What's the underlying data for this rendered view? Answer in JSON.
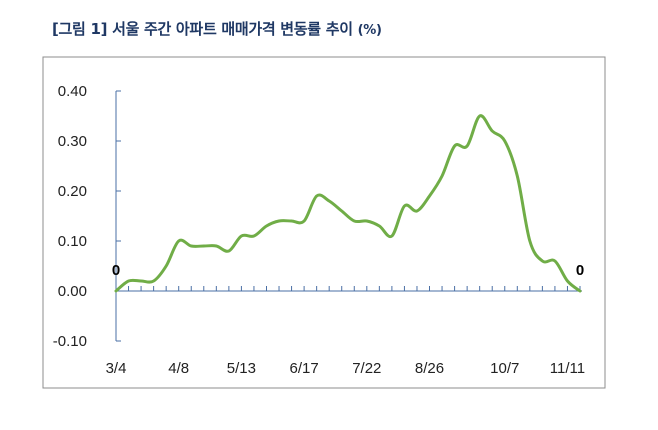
{
  "chart_data": {
    "type": "line",
    "title": "[그림 1] 서울 주간 아파트 매매가격 변동률 추이",
    "title_unit": "(%)",
    "xlabel": "",
    "ylabel": "",
    "ylim": [
      -0.1,
      0.4
    ],
    "yticks": [
      "0.40",
      "0.30",
      "0.20",
      "0.10",
      "0.00",
      "-0.10"
    ],
    "ytick_values": [
      0.4,
      0.3,
      0.2,
      0.1,
      0.0,
      -0.1
    ],
    "xtick_labels": [
      "3/4",
      "4/8",
      "5/13",
      "6/17",
      "7/22",
      "8/26",
      "10/7",
      "11/11"
    ],
    "xtick_index": [
      0,
      5,
      10,
      15,
      20,
      25,
      31,
      36
    ],
    "grid": false,
    "legend": "none",
    "series": [
      {
        "color": "#70ad47",
        "values": [
          0.0,
          0.02,
          0.02,
          0.02,
          0.05,
          0.1,
          0.09,
          0.09,
          0.09,
          0.08,
          0.11,
          0.11,
          0.13,
          0.14,
          0.14,
          0.14,
          0.19,
          0.18,
          0.16,
          0.14,
          0.14,
          0.13,
          0.11,
          0.17,
          0.16,
          0.19,
          0.23,
          0.29,
          0.29,
          0.35,
          0.32,
          0.3,
          0.23,
          0.1,
          0.06,
          0.06,
          0.02,
          0.0
        ]
      }
    ],
    "annotations": [
      {
        "text": "0",
        "index": 0,
        "value": 0.0
      },
      {
        "text": "0",
        "index": 37,
        "value": 0.0
      }
    ]
  }
}
